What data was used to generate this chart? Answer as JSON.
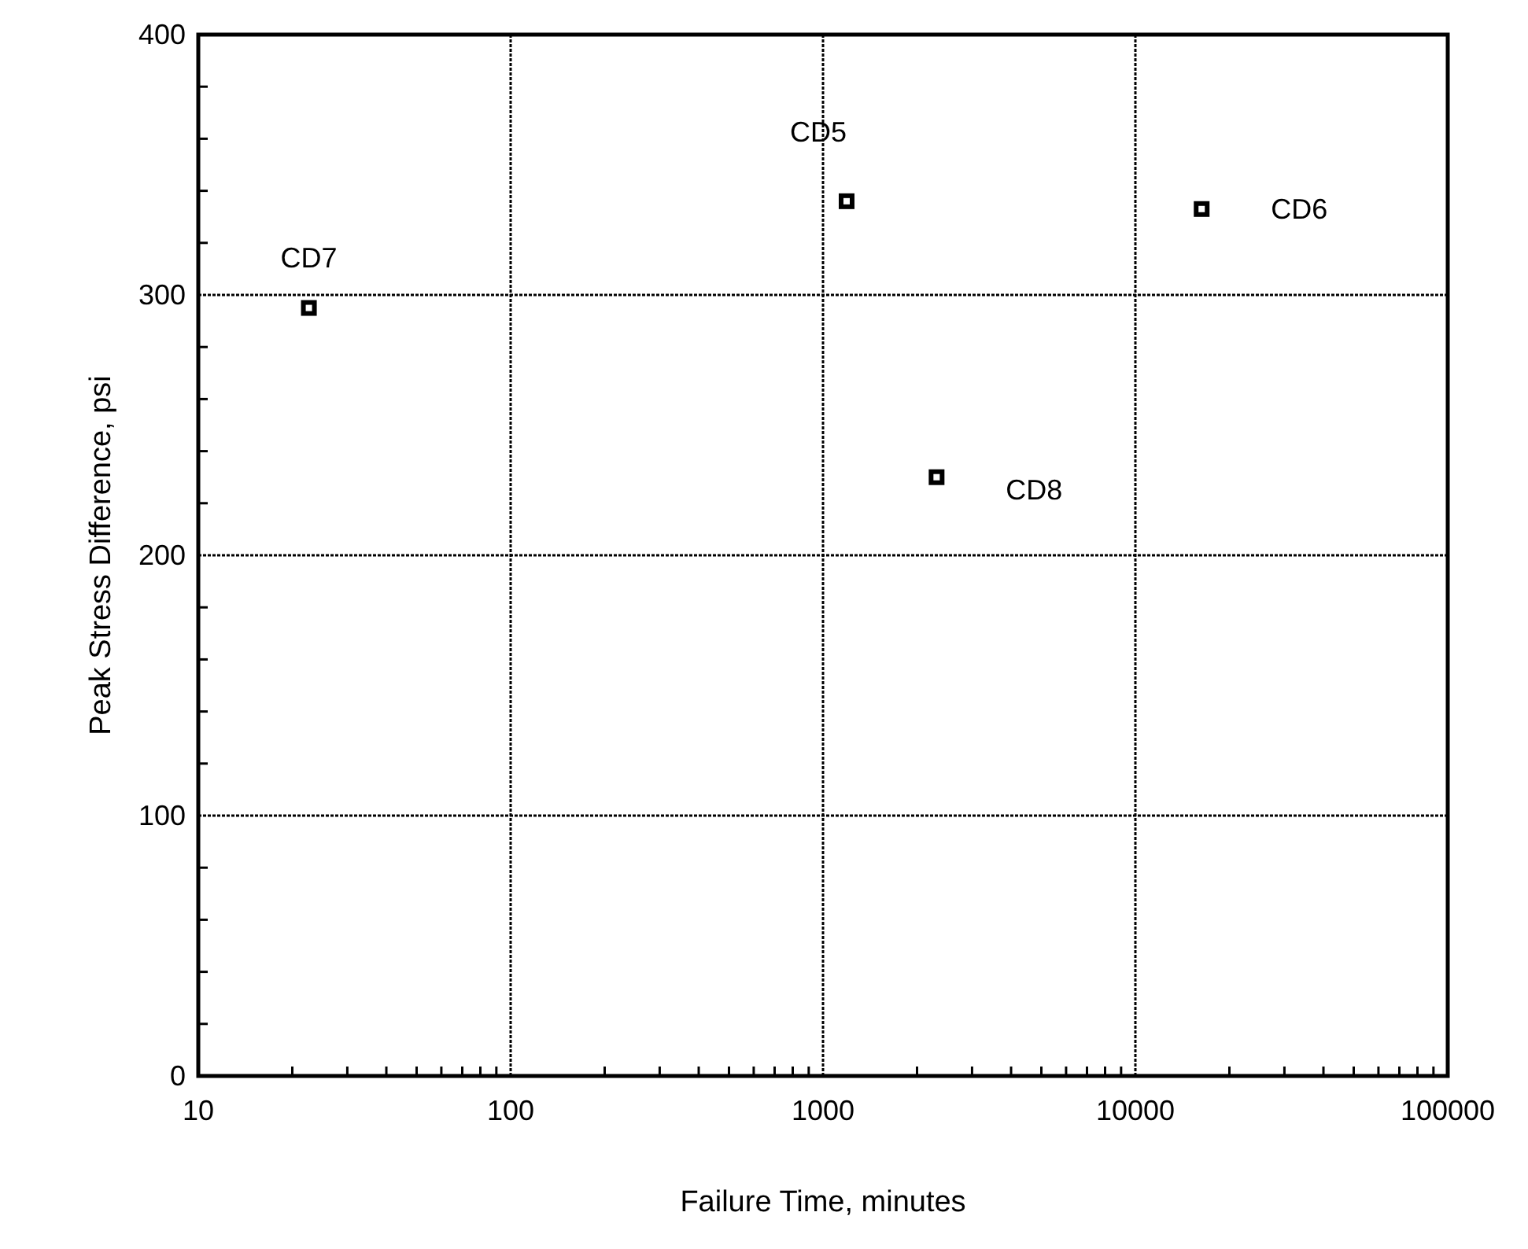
{
  "chart_data": {
    "type": "scatter",
    "xlabel": "Failure Time, minutes",
    "ylabel": "Peak Stress Difference, psi",
    "x": [
      22.6,
      1190,
      16300,
      2310
    ],
    "values": [
      295,
      336,
      333,
      230
    ],
    "color": "#000000",
    "marker": "square",
    "log": "x",
    "xlim": [
      10,
      100000
    ],
    "xticks": [
      10,
      100,
      1000,
      10000,
      100000
    ],
    "ylim": [
      0,
      400
    ],
    "yticks": [
      0,
      100,
      200,
      300,
      400
    ],
    "grid": true,
    "annotations": [
      {
        "text": "CD7",
        "x": 22.6,
        "y": 295
      },
      {
        "text": "CD5",
        "x": 1190,
        "y": 336
      },
      {
        "text": "CD6",
        "x": 16300,
        "y": 333
      },
      {
        "text": "CD8",
        "x": 2310,
        "y": 230
      }
    ]
  }
}
